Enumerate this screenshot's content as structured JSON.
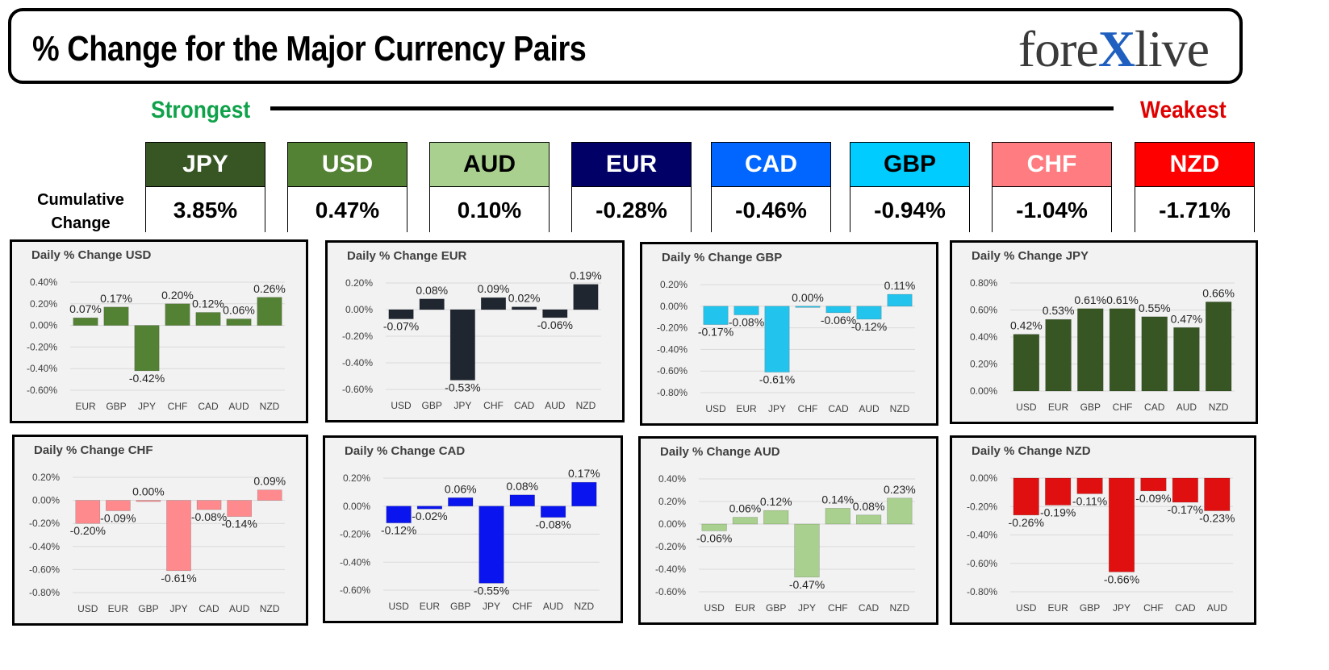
{
  "header": {
    "title": "% Change for the Major Currency Pairs",
    "logo_left": "fore",
    "logo_x": "X",
    "logo_right": "live"
  },
  "scale": {
    "strong_label": "Strongest",
    "weak_label": "Weakest"
  },
  "cumulative": {
    "label_line1": "Cumulative",
    "label_line2": "Change",
    "items": [
      {
        "ccy": "JPY",
        "value": "3.85%",
        "bg": "#375623",
        "fg": "#ffffff"
      },
      {
        "ccy": "USD",
        "value": "0.47%",
        "bg": "#548235",
        "fg": "#ffffff"
      },
      {
        "ccy": "AUD",
        "value": "0.10%",
        "bg": "#a9d08e",
        "fg": "#000000"
      },
      {
        "ccy": "EUR",
        "value": "-0.28%",
        "bg": "#000066",
        "fg": "#ffffff"
      },
      {
        "ccy": "CAD",
        "value": "-0.46%",
        "bg": "#0066ff",
        "fg": "#ffffff"
      },
      {
        "ccy": "GBP",
        "value": "-0.94%",
        "bg": "#00ccff",
        "fg": "#000000"
      },
      {
        "ccy": "CHF",
        "value": "-1.04%",
        "bg": "#ff7c80",
        "fg": "#ffffff"
      },
      {
        "ccy": "NZD",
        "value": "-1.71%",
        "bg": "#ff0000",
        "fg": "#ffffff"
      }
    ]
  },
  "chart_data": [
    {
      "type": "bar",
      "title": "Daily % Change USD",
      "color": "#548235",
      "categories": [
        "EUR",
        "GBP",
        "JPY",
        "CHF",
        "CAD",
        "AUD",
        "NZD"
      ],
      "values": [
        0.07,
        0.17,
        -0.42,
        0.2,
        0.12,
        0.06,
        0.26
      ],
      "labels": [
        "0.07%",
        "0.17%",
        "-0.42%",
        "0.20%",
        "0.12%",
        "0.06%",
        "0.26%"
      ],
      "ylim": [
        -0.6,
        0.4
      ],
      "yticks": [
        0.4,
        0.2,
        0,
        -0.2,
        -0.4,
        -0.6
      ],
      "ytick_labels": [
        "0.40%",
        "0.20%",
        "0.00%",
        "-0.20%",
        "-0.40%",
        "-0.60%"
      ]
    },
    {
      "type": "bar",
      "title": "Daily % Change EUR",
      "color": "#1f2630",
      "categories": [
        "USD",
        "GBP",
        "JPY",
        "CHF",
        "CAD",
        "AUD",
        "NZD"
      ],
      "values": [
        -0.07,
        0.08,
        -0.53,
        0.09,
        0.02,
        -0.06,
        0.19
      ],
      "labels": [
        "-0.07%",
        "0.08%",
        "-0.53%",
        "0.09%",
        "0.02%",
        "-0.06%",
        "0.19%"
      ],
      "ylim": [
        -0.6,
        0.2
      ],
      "yticks": [
        0.2,
        0,
        -0.2,
        -0.4,
        -0.6
      ],
      "ytick_labels": [
        "0.20%",
        "0.00%",
        "-0.20%",
        "-0.40%",
        "-0.60%"
      ]
    },
    {
      "type": "bar",
      "title": "Daily % Change GBP",
      "color": "#22c4ee",
      "categories": [
        "USD",
        "EUR",
        "JPY",
        "CHF",
        "CAD",
        "AUD",
        "NZD"
      ],
      "values": [
        -0.17,
        -0.08,
        -0.61,
        0.0,
        -0.06,
        -0.12,
        0.11
      ],
      "labels": [
        "-0.17%",
        "-0.08%",
        "-0.61%",
        "0.00%",
        "-0.06%",
        "-0.12%",
        "0.11%"
      ],
      "ylim": [
        -0.8,
        0.2
      ],
      "yticks": [
        0.2,
        0,
        -0.2,
        -0.4,
        -0.6,
        -0.8
      ],
      "ytick_labels": [
        "0.20%",
        "0.00%",
        "-0.20%",
        "-0.40%",
        "-0.60%",
        "-0.80%"
      ]
    },
    {
      "type": "bar",
      "title": "Daily % Change JPY",
      "color": "#375623",
      "categories": [
        "USD",
        "EUR",
        "GBP",
        "CHF",
        "CAD",
        "AUD",
        "NZD"
      ],
      "values": [
        0.42,
        0.53,
        0.61,
        0.61,
        0.55,
        0.47,
        0.66
      ],
      "labels": [
        "0.42%",
        "0.53%",
        "0.61%",
        "0.61%",
        "0.55%",
        "0.47%",
        "0.66%"
      ],
      "ylim": [
        0,
        0.8
      ],
      "yticks": [
        0.8,
        0.6,
        0.4,
        0.2,
        0
      ],
      "ytick_labels": [
        "0.80%",
        "0.60%",
        "0.40%",
        "0.20%",
        "0.00%"
      ]
    },
    {
      "type": "bar",
      "title": "Daily % Change CHF",
      "color": "#ff8a8e",
      "categories": [
        "USD",
        "EUR",
        "GBP",
        "JPY",
        "CAD",
        "AUD",
        "NZD"
      ],
      "values": [
        -0.2,
        -0.09,
        0.0,
        -0.61,
        -0.08,
        -0.14,
        0.09
      ],
      "labels": [
        "-0.20%",
        "-0.09%",
        "0.00%",
        "-0.61%",
        "-0.08%",
        "-0.14%",
        "0.09%"
      ],
      "ylim": [
        -0.8,
        0.2
      ],
      "yticks": [
        0.2,
        0,
        -0.2,
        -0.4,
        -0.6,
        -0.8
      ],
      "ytick_labels": [
        "0.20%",
        "0.00%",
        "-0.20%",
        "-0.40%",
        "-0.60%",
        "-0.80%"
      ]
    },
    {
      "type": "bar",
      "title": "Daily % Change CAD",
      "color": "#0a14ee",
      "categories": [
        "USD",
        "EUR",
        "GBP",
        "JPY",
        "CHF",
        "AUD",
        "NZD"
      ],
      "values": [
        -0.12,
        -0.02,
        0.06,
        -0.55,
        0.08,
        -0.08,
        0.17
      ],
      "labels": [
        "-0.12%",
        "-0.02%",
        "0.06%",
        "-0.55%",
        "0.08%",
        "-0.08%",
        "0.17%"
      ],
      "ylim": [
        -0.6,
        0.2
      ],
      "yticks": [
        0.2,
        0,
        -0.2,
        -0.4,
        -0.6
      ],
      "ytick_labels": [
        "0.20%",
        "0.00%",
        "-0.20%",
        "-0.40%",
        "-0.60%"
      ]
    },
    {
      "type": "bar",
      "title": "Daily % Change AUD",
      "color": "#a9d08e",
      "categories": [
        "USD",
        "EUR",
        "GBP",
        "JPY",
        "CHF",
        "CAD",
        "NZD"
      ],
      "values": [
        -0.06,
        0.06,
        0.12,
        -0.47,
        0.14,
        0.08,
        0.23
      ],
      "labels": [
        "-0.06%",
        "0.06%",
        "0.12%",
        "-0.47%",
        "0.14%",
        "0.08%",
        "0.23%"
      ],
      "ylim": [
        -0.6,
        0.4
      ],
      "yticks": [
        0.4,
        0.2,
        0,
        -0.2,
        -0.4,
        -0.6
      ],
      "ytick_labels": [
        "0.40%",
        "0.20%",
        "0.00%",
        "-0.20%",
        "-0.40%",
        "-0.60%"
      ]
    },
    {
      "type": "bar",
      "title": "Daily % Change NZD",
      "color": "#e01010",
      "categories": [
        "USD",
        "EUR",
        "GBP",
        "JPY",
        "CHF",
        "CAD",
        "AUD"
      ],
      "values": [
        -0.26,
        -0.19,
        -0.11,
        -0.66,
        -0.09,
        -0.17,
        -0.23
      ],
      "labels": [
        "-0.26%",
        "-0.19%",
        "-0.11%",
        "-0.66%",
        "-0.09%",
        "-0.17%",
        "-0.23%"
      ],
      "ylim": [
        -0.8,
        0
      ],
      "yticks": [
        0,
        -0.2,
        -0.4,
        -0.6,
        -0.8
      ],
      "ytick_labels": [
        "0.00%",
        "-0.20%",
        "-0.40%",
        "-0.60%",
        "-0.80%"
      ]
    }
  ]
}
